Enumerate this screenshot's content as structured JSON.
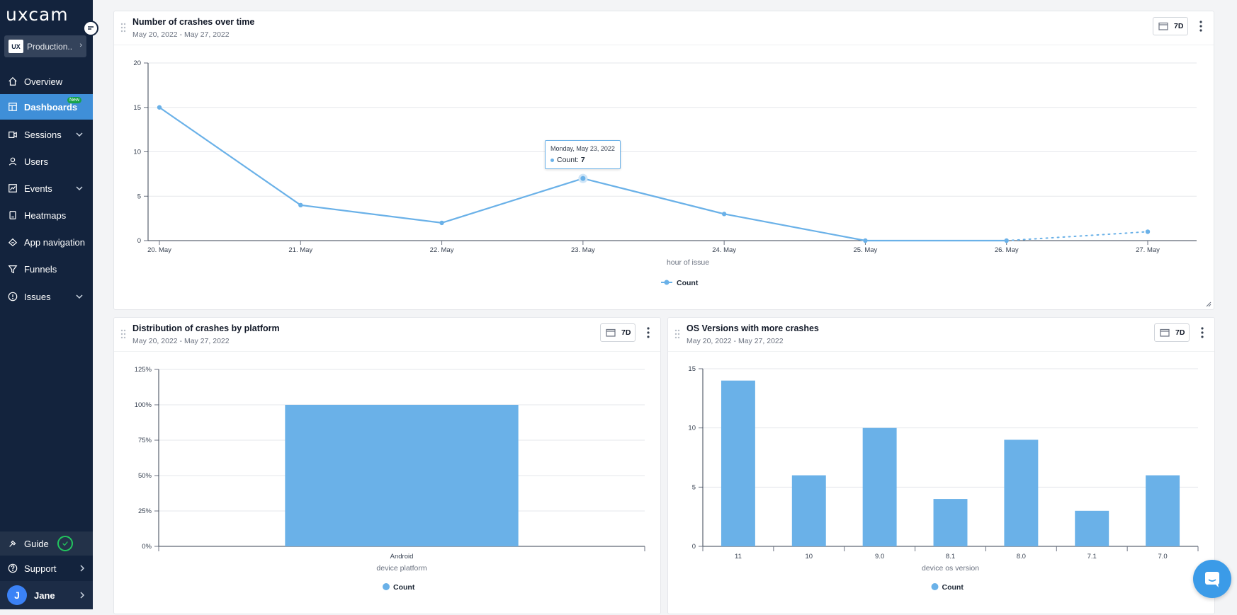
{
  "app": {
    "logo": "uxcam",
    "project": {
      "badge": "UX",
      "name": "Production..."
    }
  },
  "sidebar": {
    "items": [
      {
        "label": "Overview",
        "icon": "home-icon"
      },
      {
        "label": "Dashboards",
        "icon": "dashboard-icon",
        "badge": "New",
        "active": true
      },
      {
        "label": "Sessions",
        "icon": "sessions-icon",
        "expandable": true
      },
      {
        "label": "Users",
        "icon": "users-icon"
      },
      {
        "label": "Events",
        "icon": "events-icon",
        "expandable": true
      },
      {
        "label": "Heatmaps",
        "icon": "heatmaps-icon"
      },
      {
        "label": "App navigation",
        "icon": "app-navigation-icon"
      },
      {
        "label": "Funnels",
        "icon": "funnels-icon"
      },
      {
        "label": "Issues",
        "icon": "issues-icon",
        "expandable": true
      }
    ],
    "guide_label": "Guide",
    "support_label": "Support",
    "user": {
      "initial": "J",
      "name": "Jane"
    }
  },
  "colors": {
    "sidebar_bg": "#13233d",
    "accent": "#3f8fd8",
    "series": "#6ab1e8",
    "new_badge": "#16a34a"
  },
  "cards": {
    "crashes_over_time": {
      "title": "Number of crashes over time",
      "subtitle": "May 20, 2022 - May 27, 2022",
      "range": "7D"
    },
    "platform": {
      "title": "Distribution of crashes by platform",
      "subtitle": "May 20, 2022 - May 27, 2022",
      "range": "7D"
    },
    "os_versions": {
      "title": "OS Versions with more crashes",
      "subtitle": "May 20, 2022 - May 27, 2022",
      "range": "7D"
    }
  },
  "tooltip": {
    "date": "Monday, May 23, 2022",
    "label": "Count:",
    "value": "7"
  },
  "chart_data": [
    {
      "type": "line",
      "title": "Number of crashes over time",
      "xlabel": "hour of issue",
      "ylabel": "",
      "categories": [
        "20. May",
        "21. May",
        "22. May",
        "23. May",
        "24. May",
        "25. May",
        "26. May",
        "27. May"
      ],
      "series": [
        {
          "name": "Count",
          "values": [
            15,
            4,
            2,
            7,
            3,
            0,
            0,
            1
          ]
        }
      ],
      "ylim": [
        0,
        20
      ],
      "yticks": [
        "0",
        "5",
        "10",
        "15",
        "20"
      ],
      "grid": true,
      "legend": "bottom-center",
      "dashed_last_segment": true
    },
    {
      "type": "bar",
      "title": "Distribution of crashes by platform",
      "xlabel": "device platform",
      "ylabel": "",
      "categories": [
        "Android"
      ],
      "series": [
        {
          "name": "Count",
          "values": [
            100
          ]
        }
      ],
      "ylim": [
        0,
        125
      ],
      "yticks": [
        "0%",
        "25%",
        "50%",
        "75%",
        "100%",
        "125%"
      ],
      "grid": true,
      "legend": "bottom-center"
    },
    {
      "type": "bar",
      "title": "OS Versions with more crashes",
      "xlabel": "device os version",
      "ylabel": "",
      "categories": [
        "11",
        "10",
        "9.0",
        "8.1",
        "8.0",
        "7.1",
        "7.0"
      ],
      "series": [
        {
          "name": "Count",
          "values": [
            14,
            6,
            10,
            4,
            9,
            3,
            6
          ]
        }
      ],
      "ylim": [
        0,
        15
      ],
      "yticks": [
        "0",
        "5",
        "10",
        "15"
      ],
      "grid": true,
      "legend": "bottom-center"
    }
  ]
}
